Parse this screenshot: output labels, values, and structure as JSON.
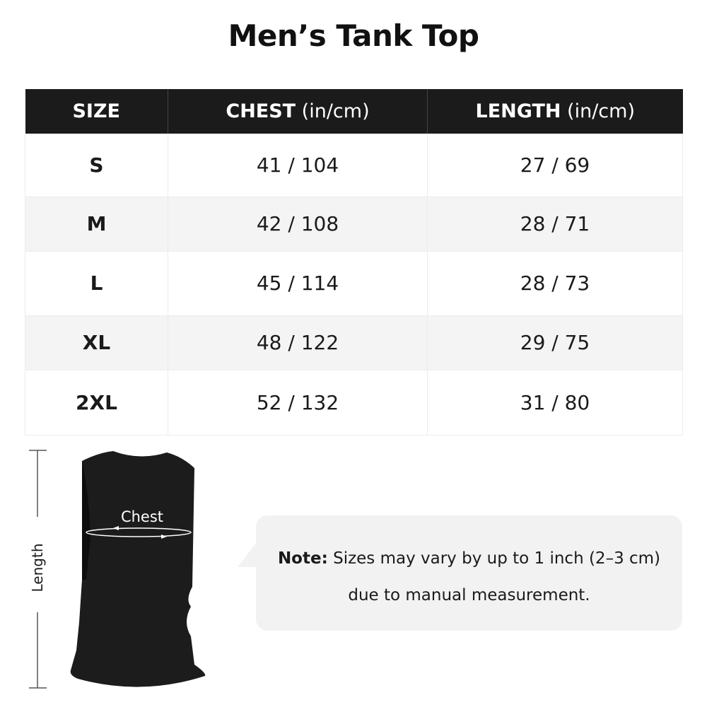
{
  "title": "Men’s Tank Top",
  "table": {
    "headers": [
      {
        "label": "SIZE",
        "unit": ""
      },
      {
        "label": "CHEST",
        "unit": " (in/cm)"
      },
      {
        "label": "LENGTH",
        "unit": " (in/cm)"
      }
    ],
    "rows": [
      {
        "size": "S",
        "chest": "41 / 104",
        "length": "27 / 69"
      },
      {
        "size": "M",
        "chest": "42 / 108",
        "length": "28 / 71"
      },
      {
        "size": "L",
        "chest": "45 / 114",
        "length": "28 / 73"
      },
      {
        "size": "XL",
        "chest": "48 / 122",
        "length": "29 / 75"
      },
      {
        "size": "2XL",
        "chest": "52 / 132",
        "length": "31 / 80"
      }
    ]
  },
  "diagram": {
    "chest_label": "Chest",
    "length_label": "Length",
    "garment_color": "#1c1c1c"
  },
  "note": {
    "label": "Note:",
    "line1": " Sizes may vary by up to 1 inch (2–3 cm)",
    "line2": "due to manual measurement."
  }
}
